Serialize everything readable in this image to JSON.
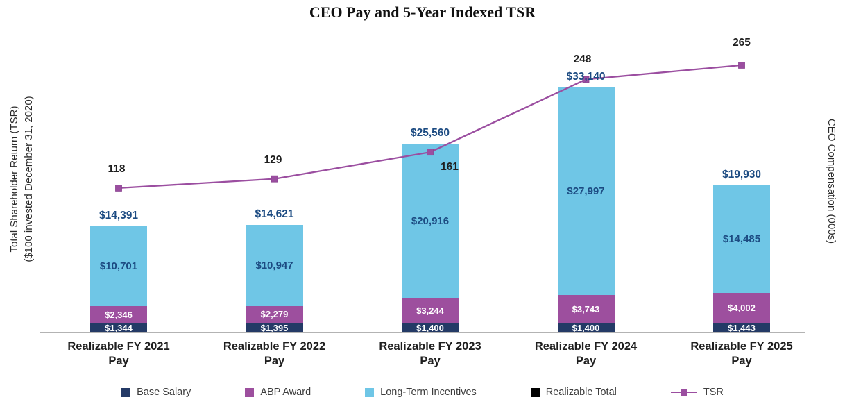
{
  "chart_data": {
    "type": "bar+line",
    "title": "CEO Pay and 5-Year Indexed TSR",
    "categories": [
      "Realizable FY 2021 Pay",
      "Realizable FY 2022 Pay",
      "Realizable FY 2023 Pay",
      "Realizable FY 2024 Pay",
      "Realizable FY 2025 Pay"
    ],
    "bar_series": [
      {
        "name": "Base Salary",
        "color": "#243a66",
        "values": [
          1344,
          1395,
          1400,
          1400,
          1443
        ]
      },
      {
        "name": "ABP Award",
        "color": "#9d4f9e",
        "values": [
          2346,
          2279,
          3244,
          3743,
          4002
        ]
      },
      {
        "name": "Long-Term Incentives",
        "color": "#6fc6e6",
        "values": [
          10701,
          10947,
          20916,
          27997,
          14485
        ]
      }
    ],
    "totals": {
      "name": "Realizable Total",
      "color": "#000000",
      "values": [
        14391,
        14621,
        25560,
        33140,
        19930
      ]
    },
    "line_series": {
      "name": "TSR",
      "color": "#9b4ea0",
      "values": [
        118,
        129,
        161,
        248,
        265
      ]
    },
    "left_axis": {
      "label_line1": "Total Shareholder Return (TSR)",
      "label_line2": "($100 invested December 31, 2020)"
    },
    "right_axis": {
      "label": "CEO Compensation (000s)"
    },
    "legend": [
      {
        "label": "Base Salary",
        "swatch": "square",
        "color": "#243a66"
      },
      {
        "label": "ABP Award",
        "swatch": "square",
        "color": "#9d4f9e"
      },
      {
        "label": "Long-Term Incentives",
        "swatch": "square",
        "color": "#6fc6e6"
      },
      {
        "label": "Realizable Total",
        "swatch": "square",
        "color": "#000000"
      },
      {
        "label": "TSR",
        "swatch": "line-marker",
        "color": "#9b4ea0"
      }
    ],
    "value_prefix": "$",
    "legend_position": "bottom",
    "grid": false
  }
}
